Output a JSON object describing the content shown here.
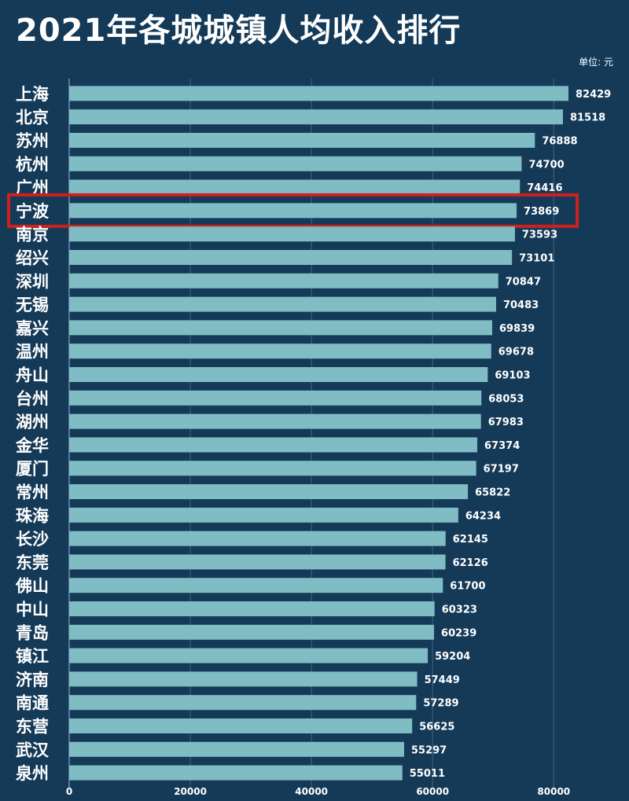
{
  "chart_data": {
    "type": "bar",
    "orientation": "horizontal",
    "title": "2021年各城城镇人均收入排行",
    "unit": "单位: 元",
    "categories": [
      "上海",
      "北京",
      "苏州",
      "杭州",
      "广州",
      "宁波",
      "南京",
      "绍兴",
      "深圳",
      "无锡",
      "嘉兴",
      "温州",
      "舟山",
      "台州",
      "湖州",
      "金华",
      "厦门",
      "常州",
      "珠海",
      "长沙",
      "东莞",
      "佛山",
      "中山",
      "青岛",
      "镇江",
      "济南",
      "南通",
      "东营",
      "武汉",
      "泉州"
    ],
    "values": [
      82429,
      81518,
      76888,
      74700,
      74416,
      73869,
      73593,
      73101,
      70847,
      70483,
      69839,
      69678,
      69103,
      68053,
      67983,
      67374,
      67197,
      65822,
      64234,
      62145,
      62126,
      61700,
      60323,
      60239,
      59204,
      57449,
      57289,
      56625,
      55297,
      55011
    ],
    "highlight": "宁波",
    "highlight_color": "#d0201c",
    "bar_color": "#7fbcc3",
    "background_color": "#143a58",
    "xlim": [
      0,
      82429
    ],
    "xticks": [
      0,
      20000,
      40000,
      60000,
      80000
    ],
    "grid": true
  }
}
